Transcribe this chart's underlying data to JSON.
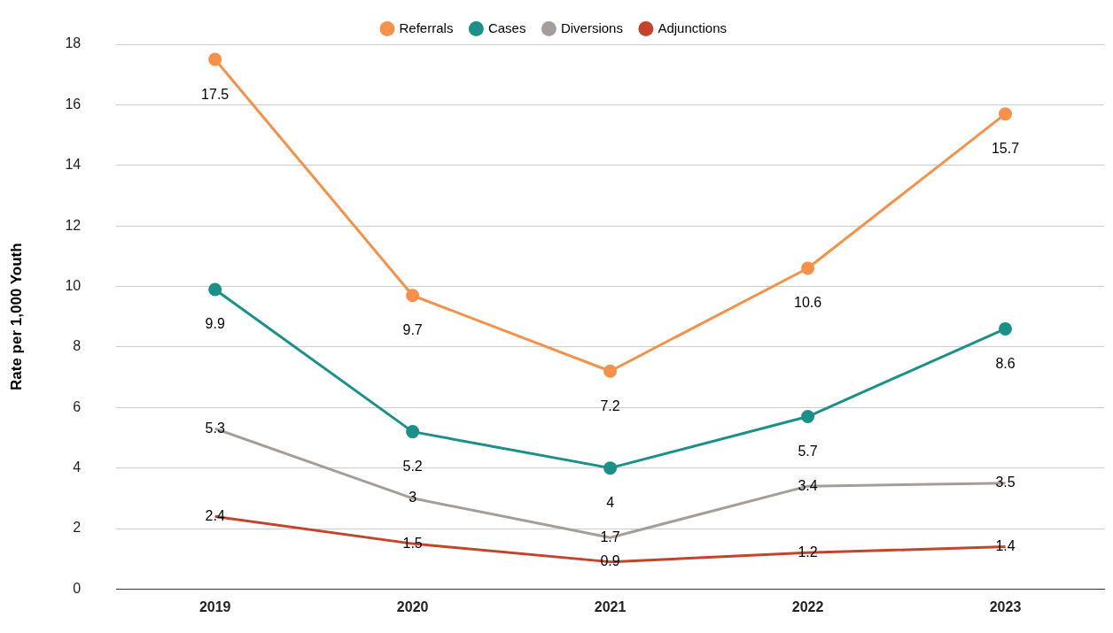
{
  "chart_data": {
    "type": "line",
    "ylabel": "Rate per 1,000 Youth",
    "categories": [
      "2019",
      "2020",
      "2021",
      "2022",
      "2023"
    ],
    "series": [
      {
        "name": "Referrals",
        "color": "#f4914a",
        "marker": "circle",
        "values": [
          17.5,
          9.7,
          7.2,
          10.6,
          15.7
        ]
      },
      {
        "name": "Cases",
        "color": "#1a9088",
        "marker": "circle",
        "values": [
          9.9,
          5.2,
          4,
          5.7,
          8.6
        ]
      },
      {
        "name": "Diversions",
        "color": "#a59e98",
        "marker": "none",
        "values": [
          5.3,
          3,
          1.7,
          3.4,
          3.5
        ]
      },
      {
        "name": "Adjunctions",
        "color": "#c4432b",
        "marker": "none",
        "values": [
          2.4,
          1.5,
          0.9,
          1.2,
          1.4
        ]
      }
    ],
    "ylim": [
      0,
      18
    ],
    "yticks": [
      0,
      2,
      4,
      6,
      8,
      10,
      12,
      14,
      16,
      18
    ],
    "grid": "y",
    "legend": "top",
    "data_labels": true,
    "line_style": "solid"
  }
}
